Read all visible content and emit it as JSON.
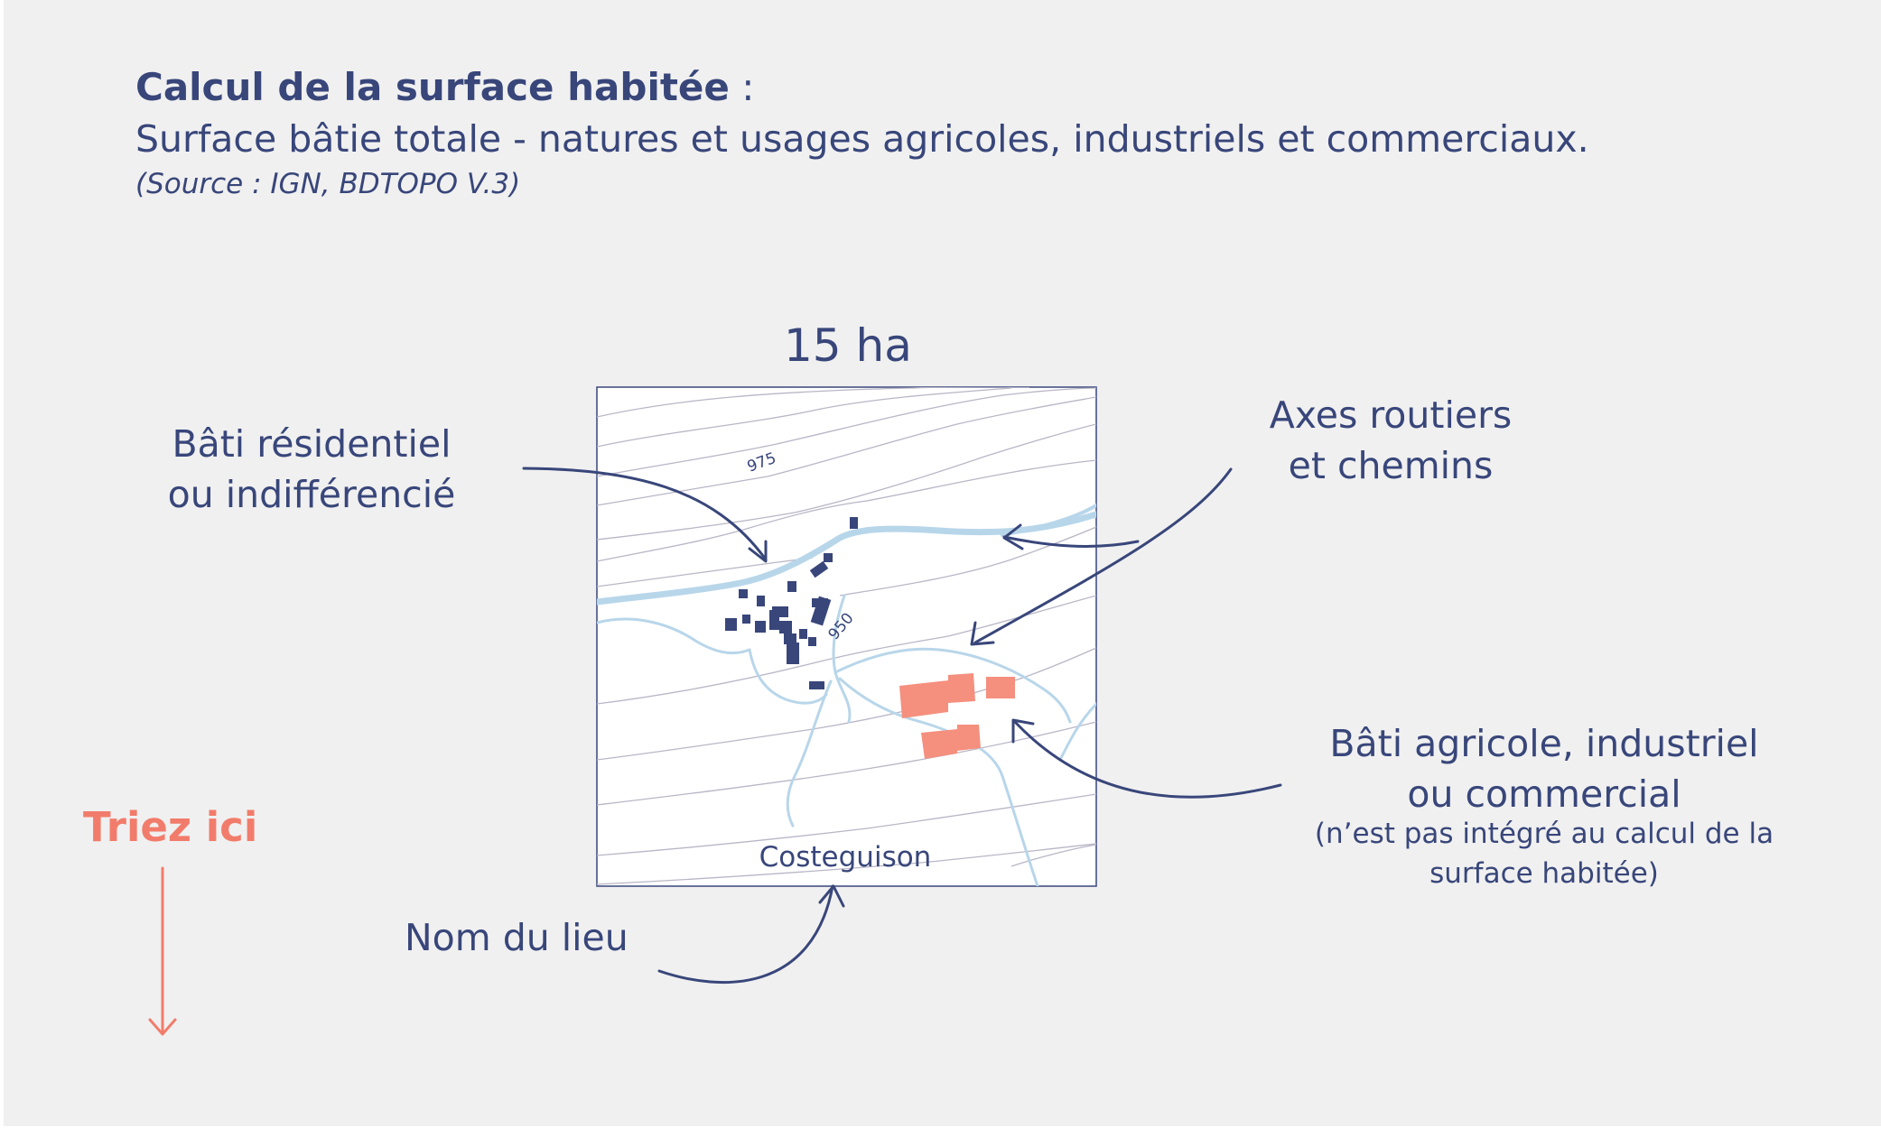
{
  "title": {
    "bold": "Calcul de la surface habitée",
    "suffix": " :"
  },
  "subtitle": "Surface bâtie totale - natures et usages agricoles, industriels et commerciaux.",
  "source": "(Source : IGN, BDTOPO V.3)",
  "map": {
    "area_label": "15 ha",
    "place_name": "Costeguison",
    "contour_labels": [
      "975",
      "950"
    ]
  },
  "callouts": {
    "residential_line1": "Bâti résidentiel",
    "residential_line2": "ou indifférencié",
    "roads_line1": "Axes routiers",
    "roads_line2": "et chemins",
    "agri_line1": "Bâti agricole, industriel",
    "agri_line2": "ou commercial",
    "agri_note": "(n’est pas intégré au calcul de la surface habitée)",
    "place": "Nom du lieu"
  },
  "cta": {
    "label": "Triez ici",
    "arrow_icon": "down-arrow-icon"
  },
  "colors": {
    "text": "#38467a",
    "accent": "#f27c6b",
    "residential": "#38467a",
    "agricultural": "#f58f7e",
    "roads": "#b8d6ea",
    "contours": "#b9b6c6",
    "background": "#f0f0f0"
  }
}
